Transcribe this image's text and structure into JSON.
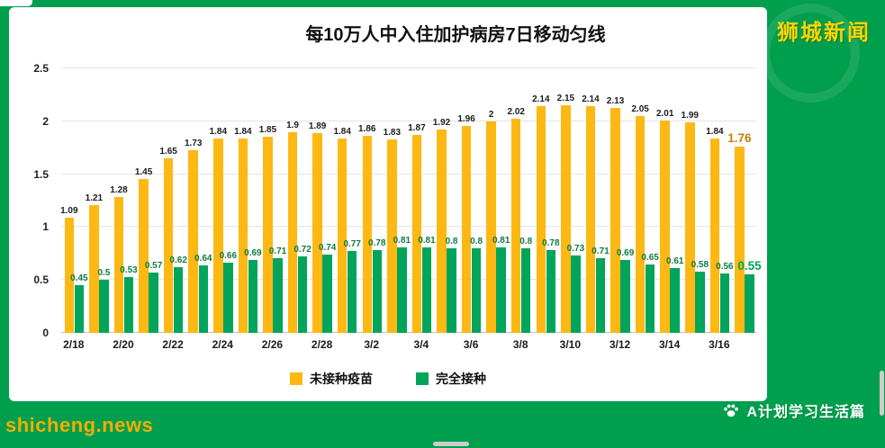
{
  "page": {
    "background_color": "#009F4D",
    "brand_top_right": "狮城新闻",
    "brand_bottom_right": "A计划学习生活篇",
    "brand_bottom_right_icon": "paw-icon",
    "watermark": "shicheng.news"
  },
  "colors": {
    "unvaccinated_bar": "#FDB813",
    "vaccinated_bar": "#00A45B",
    "unvaccinated_highlight_label": "#C77F00",
    "vaccinated_highlight_label": "#00A651",
    "brand_yellow": "#FFD400",
    "panel_background": "#FFFFFF"
  },
  "chart_data": {
    "type": "bar",
    "title": "每10万人中入住加护病房7日移动匀线",
    "categories": [
      "2/18",
      "2/19",
      "2/20",
      "2/21",
      "2/22",
      "2/23",
      "2/24",
      "2/25",
      "2/26",
      "2/27",
      "2/28",
      "3/1",
      "3/2",
      "3/3",
      "3/4",
      "3/5",
      "3/6",
      "3/7",
      "3/8",
      "3/9",
      "3/10",
      "3/11",
      "3/12",
      "3/13",
      "3/14",
      "3/15",
      "3/16",
      "3/17"
    ],
    "x_tick_interval": 2,
    "series": [
      {
        "name": "未接种疫苗",
        "color": "#FDB813",
        "values": [
          1.09,
          1.21,
          1.28,
          1.45,
          1.65,
          1.73,
          1.84,
          1.84,
          1.85,
          1.9,
          1.89,
          1.84,
          1.86,
          1.83,
          1.87,
          1.92,
          1.96,
          2,
          2.02,
          2.14,
          2.15,
          2.14,
          2.13,
          2.05,
          2.01,
          1.99,
          1.84,
          1.76
        ]
      },
      {
        "name": "完全接种",
        "color": "#00A45B",
        "values": [
          0.45,
          0.5,
          0.53,
          0.57,
          0.62,
          0.64,
          0.66,
          0.69,
          0.71,
          0.72,
          0.74,
          0.77,
          0.78,
          0.81,
          0.81,
          0.8,
          0.8,
          0.81,
          0.8,
          0.78,
          0.73,
          0.71,
          0.69,
          0.65,
          0.61,
          0.58,
          0.56,
          0.55
        ]
      }
    ],
    "ylim": [
      0,
      2.5
    ],
    "yticks": [
      0,
      0.5,
      1,
      1.5,
      2,
      2.5
    ],
    "grid": true,
    "legend_position": "bottom",
    "highlight_last_point": true,
    "last_values": {
      "未接种疫苗": 1.76,
      "完全接种": 0.55
    }
  }
}
